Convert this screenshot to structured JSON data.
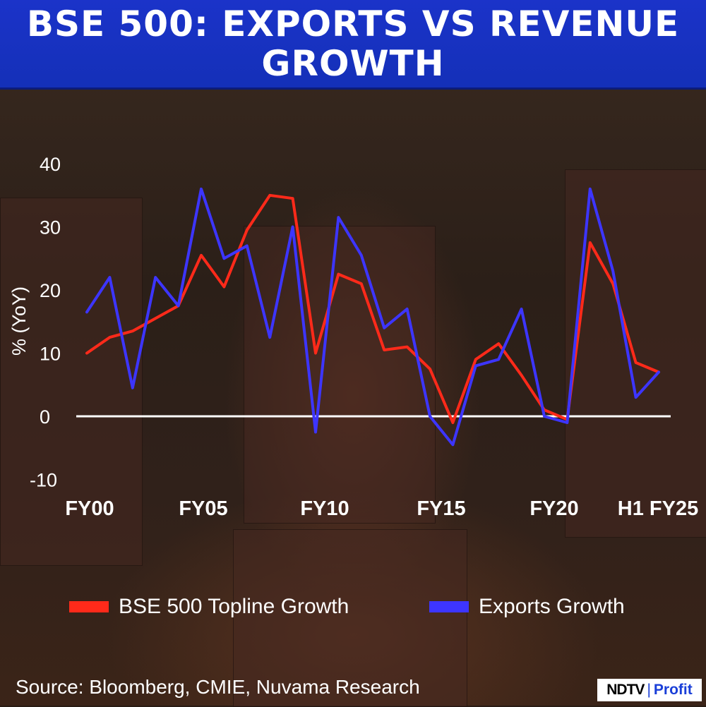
{
  "header": {
    "title": "BSE 500: EXPORTS VS REVENUE GROWTH"
  },
  "colors": {
    "header_bg": "#1a34c8",
    "revenue": "#ff2a1a",
    "exports": "#3d35ff",
    "zero_line": "#ffffff"
  },
  "chart_data": {
    "type": "line",
    "title": "BSE 500: EXPORTS VS REVENUE GROWTH",
    "xlabel": "",
    "ylabel": "% (YoY)",
    "ylim": [
      -10,
      40
    ],
    "yticks": [
      40,
      30,
      20,
      10,
      0,
      -10
    ],
    "x": [
      "FY00",
      "FY01",
      "FY02",
      "FY03",
      "FY04",
      "FY05",
      "FY06",
      "FY07",
      "FY08",
      "FY09",
      "FY10",
      "FY11",
      "FY12",
      "FY13",
      "FY14",
      "FY15",
      "FY16",
      "FY17",
      "FY18",
      "FY19",
      "FY20",
      "FY21",
      "FY22",
      "FY23",
      "FY24",
      "H1 FY25"
    ],
    "xtick_labels": [
      "FY00",
      "FY05",
      "FY10",
      "FY15",
      "FY20",
      "H1 FY25"
    ],
    "series": [
      {
        "name": "BSE 500 Topline Growth",
        "color": "#ff2a1a",
        "values": [
          10,
          12.5,
          13.5,
          15.5,
          17.5,
          25.5,
          20.5,
          29.5,
          35,
          34.5,
          10,
          22.5,
          21,
          10.5,
          11,
          7.5,
          -1,
          9,
          11.5,
          6.5,
          1,
          -0.5,
          27.5,
          21,
          8.5,
          7
        ]
      },
      {
        "name": "Exports Growth",
        "color": "#3d35ff",
        "values": [
          16.5,
          22,
          4.5,
          22,
          17.5,
          36,
          25,
          27,
          12.5,
          30,
          -2.5,
          31.5,
          25.5,
          14,
          17,
          0,
          -4.5,
          8,
          9,
          17,
          0,
          -1,
          36,
          23,
          3,
          7
        ]
      }
    ],
    "legend_position": "bottom",
    "grid": false,
    "zero_line": true
  },
  "source": "Source: Bloomberg, CMIE, Nuvama Research",
  "logo": {
    "ndtv": "NDTV",
    "separator": "|",
    "profit": "Profit"
  }
}
